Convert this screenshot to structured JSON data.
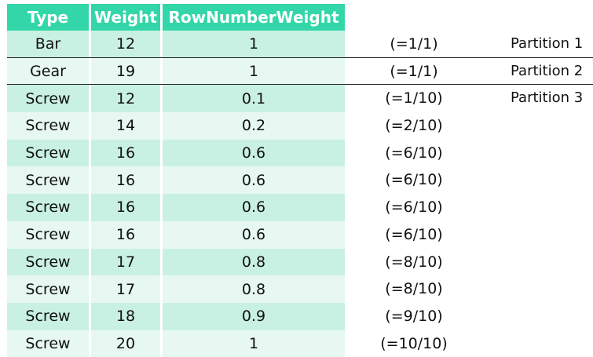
{
  "headers": [
    "Type",
    "Weight",
    "RowNumberWeight"
  ],
  "rows": [
    {
      "type": "Bar",
      "weight": "12",
      "rnw": "1",
      "calc": "(=1/1)",
      "partition": "Partition 1"
    },
    {
      "type": "Gear",
      "weight": "19",
      "rnw": "1",
      "calc": "(=1/1)",
      "partition": "Partition 2"
    },
    {
      "type": "Screw",
      "weight": "12",
      "rnw": "0.1",
      "calc": "(=1/10)",
      "partition": "Partition 3"
    },
    {
      "type": "Screw",
      "weight": "14",
      "rnw": "0.2",
      "calc": "(=2/10)",
      "partition": ""
    },
    {
      "type": "Screw",
      "weight": "16",
      "rnw": "0.6",
      "calc": "(=6/10)",
      "partition": ""
    },
    {
      "type": "Screw",
      "weight": "16",
      "rnw": "0.6",
      "calc": "(=6/10)",
      "partition": ""
    },
    {
      "type": "Screw",
      "weight": "16",
      "rnw": "0.6",
      "calc": "(=6/10)",
      "partition": ""
    },
    {
      "type": "Screw",
      "weight": "16",
      "rnw": "0.6",
      "calc": "(=6/10)",
      "partition": ""
    },
    {
      "type": "Screw",
      "weight": "17",
      "rnw": "0.8",
      "calc": "(=8/10)",
      "partition": ""
    },
    {
      "type": "Screw",
      "weight": "17",
      "rnw": "0.8",
      "calc": "(=8/10)",
      "partition": ""
    },
    {
      "type": "Screw",
      "weight": "18",
      "rnw": "0.9",
      "calc": "(=9/10)",
      "partition": ""
    },
    {
      "type": "Screw",
      "weight": "20",
      "rnw": "1",
      "calc": "(=10/10)",
      "partition": ""
    }
  ],
  "colors": {
    "header_bg": "#33d6a8",
    "header_text": "#ffffff",
    "row_odd_bg": "#c9f1e3",
    "row_even_bg": "#e6f8f1",
    "separator": "#222222"
  }
}
